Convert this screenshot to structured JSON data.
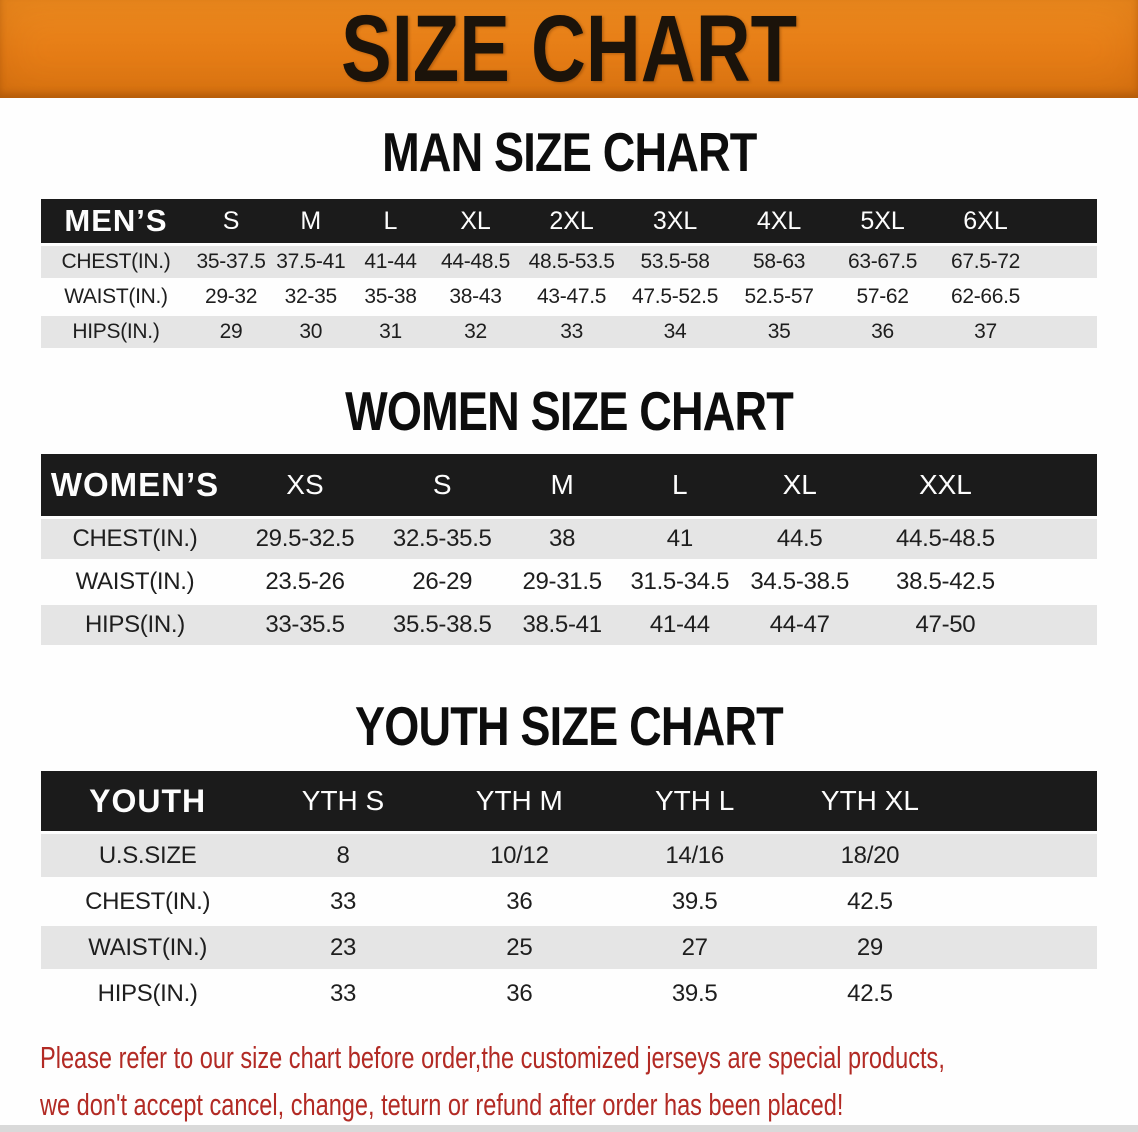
{
  "banner": {
    "title": "SIZE CHART"
  },
  "colors": {
    "banner_bg": "#E67D16",
    "table_header_bg": "#1B1B1B",
    "row_alt_bg": "#E5E5E5",
    "note_text": "#B22A24"
  },
  "sections": [
    {
      "title": "MAN SIZE CHART",
      "header_label": "MEN’S",
      "columns": [
        "S",
        "M",
        "L",
        "XL",
        "2XL",
        "3XL",
        "4XL",
        "5XL",
        "6XL"
      ],
      "rows": [
        {
          "label": "CHEST(IN.)",
          "values": [
            "35-37.5",
            "37.5-41",
            "41-44",
            "44-48.5",
            "48.5-53.5",
            "53.5-58",
            "58-63",
            "63-67.5",
            "67.5-72"
          ]
        },
        {
          "label": "WAIST(IN.)",
          "values": [
            "29-32",
            "32-35",
            "35-38",
            "38-43",
            "43-47.5",
            "47.5-52.5",
            "52.5-57",
            "57-62",
            "62-66.5"
          ]
        },
        {
          "label": "HIPS(IN.)",
          "values": [
            "29",
            "30",
            "31",
            "32",
            "33",
            "34",
            "35",
            "36",
            "37"
          ]
        }
      ]
    },
    {
      "title": "WOMEN SIZE CHART",
      "header_label": "WOMEN’S",
      "columns": [
        "XS",
        "S",
        "M",
        "L",
        "XL",
        "XXL"
      ],
      "rows": [
        {
          "label": "CHEST(IN.)",
          "values": [
            "29.5-32.5",
            "32.5-35.5",
            "38",
            "41",
            "44.5",
            "44.5-48.5"
          ]
        },
        {
          "label": "WAIST(IN.)",
          "values": [
            "23.5-26",
            "26-29",
            "29-31.5",
            "31.5-34.5",
            "34.5-38.5",
            "38.5-42.5"
          ]
        },
        {
          "label": "HIPS(IN.)",
          "values": [
            "33-35.5",
            "35.5-38.5",
            "38.5-41",
            "41-44",
            "44-47",
            "47-50"
          ]
        }
      ]
    },
    {
      "title": "YOUTH SIZE CHART",
      "header_label": "YOUTH",
      "columns": [
        "YTH S",
        "YTH M",
        "YTH L",
        "YTH XL"
      ],
      "rows": [
        {
          "label": "U.S.SIZE",
          "values": [
            "8",
            "10/12",
            "14/16",
            "18/20"
          ]
        },
        {
          "label": "CHEST(IN.)",
          "values": [
            "33",
            "36",
            "39.5",
            "42.5"
          ]
        },
        {
          "label": "WAIST(IN.)",
          "values": [
            "23",
            "25",
            "27",
            "29"
          ]
        },
        {
          "label": "HIPS(IN.)",
          "values": [
            "33",
            "36",
            "39.5",
            "42.5"
          ]
        }
      ]
    }
  ],
  "footer_note": {
    "line1": "Please refer to our size chart before order,the customized jerseys are special products,",
    "line2": "we don't accept cancel, change, teturn or refund after order has been placed!"
  }
}
